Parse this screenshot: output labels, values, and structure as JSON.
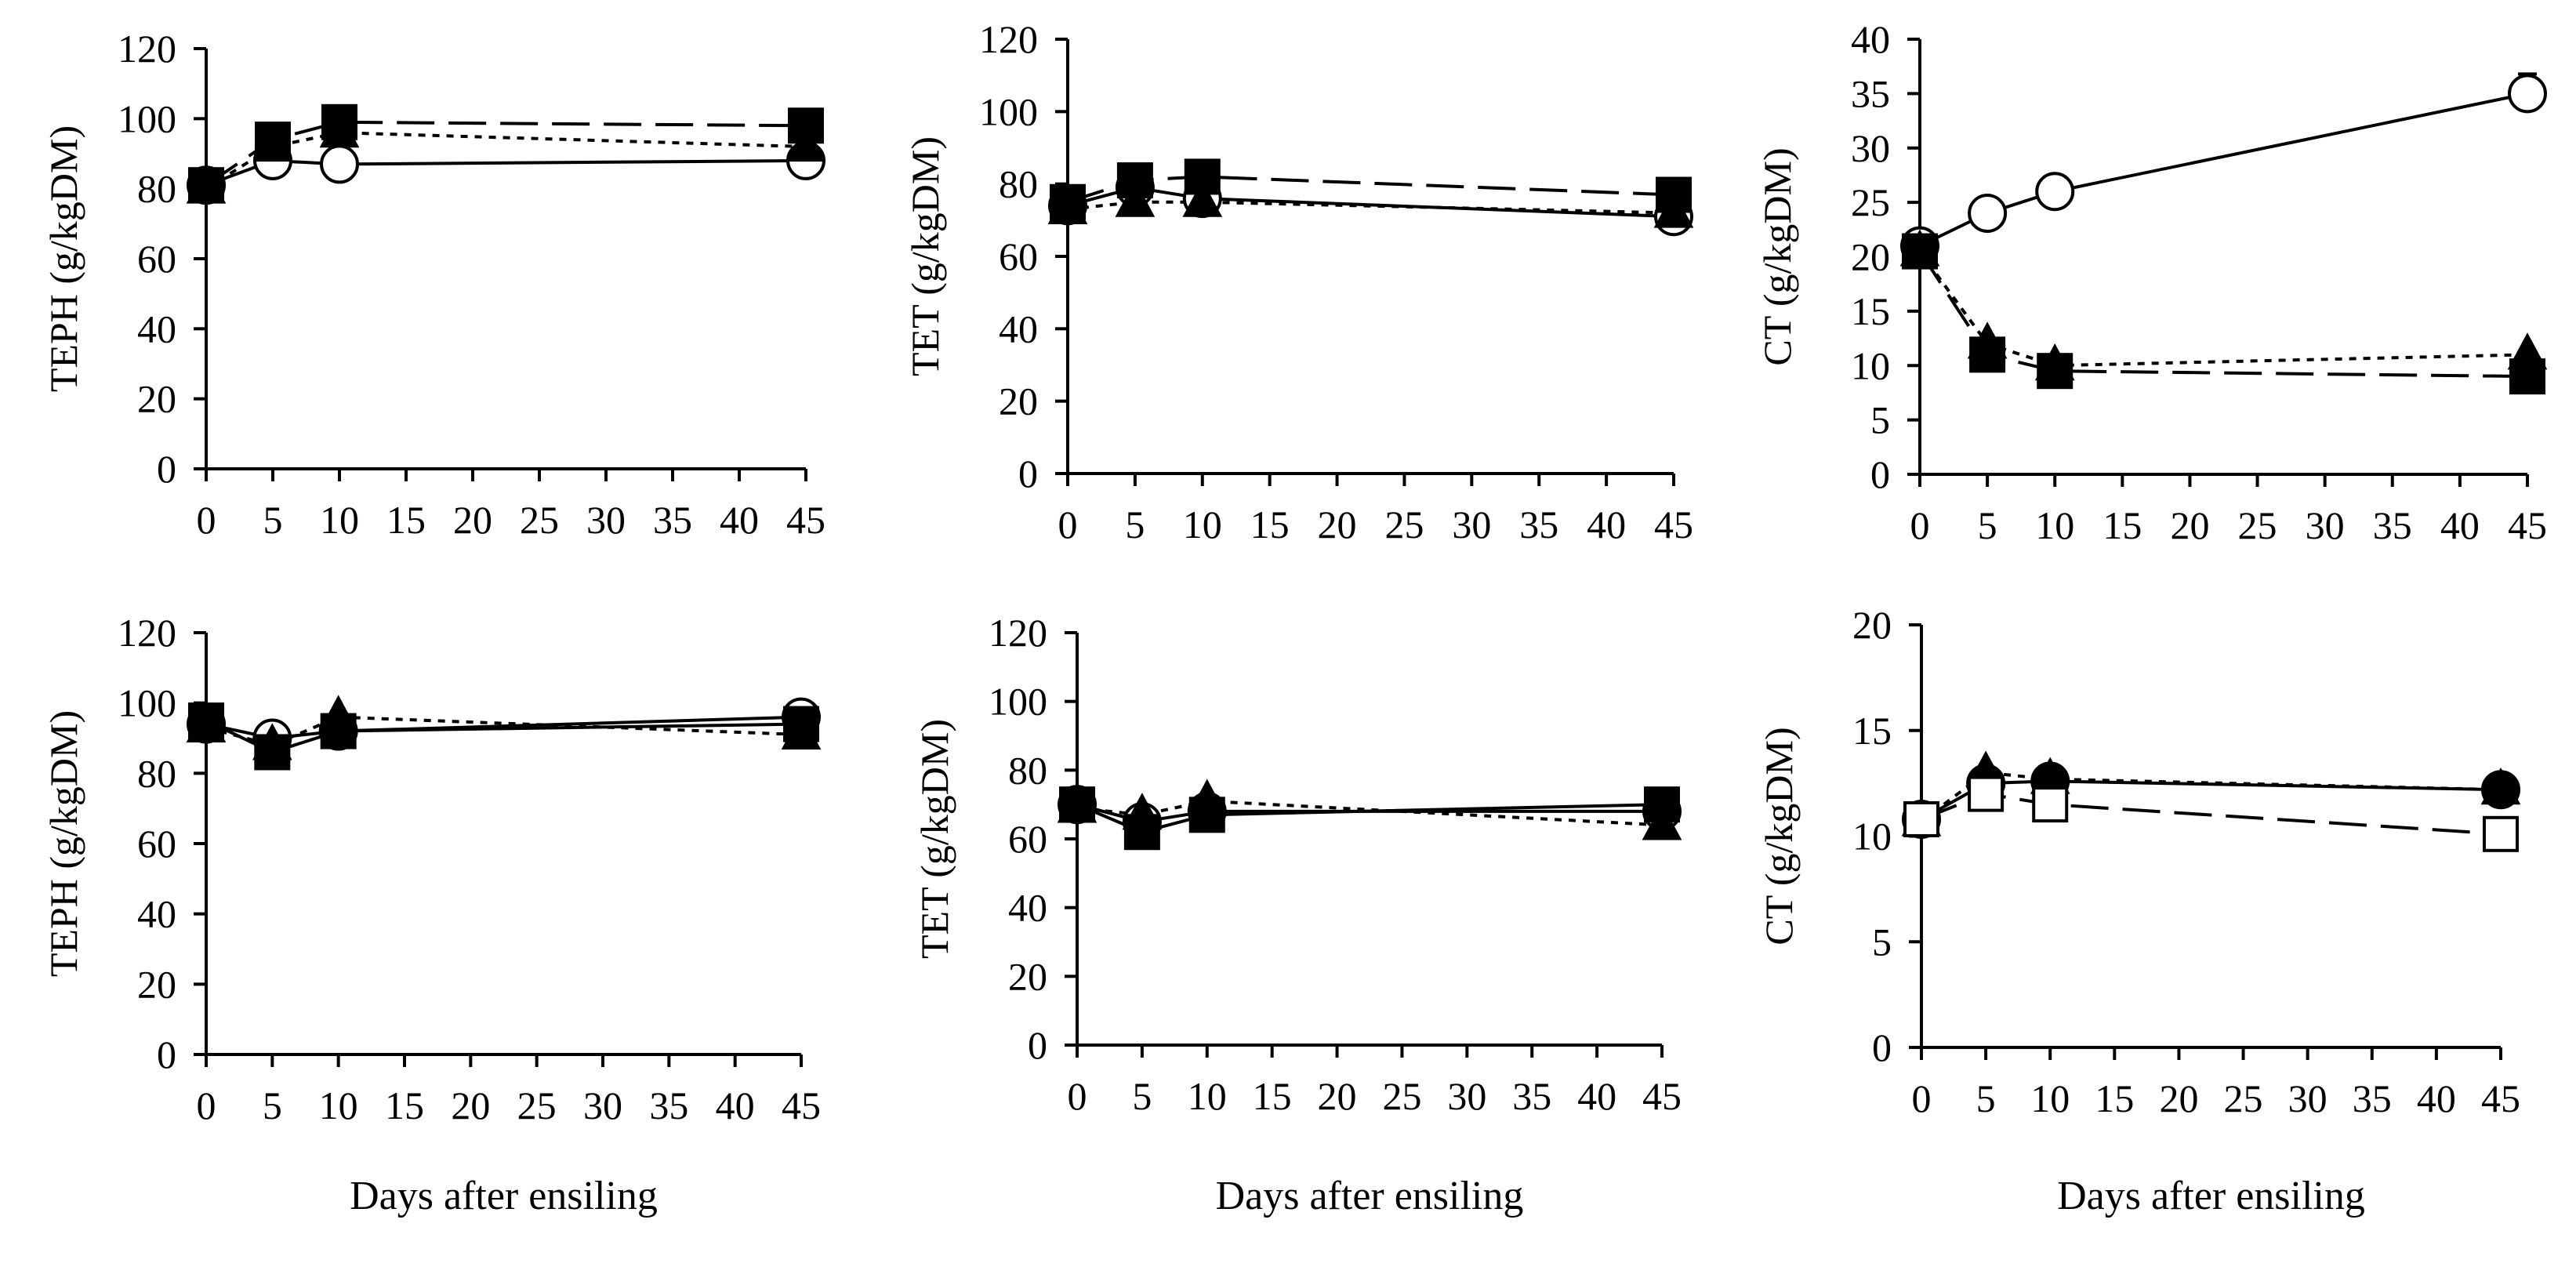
{
  "chart_data": [
    {
      "type": "line",
      "ylabel": "TEPH (g/kgDM)",
      "xlabel": "",
      "ylim": [
        0,
        120
      ],
      "yticks": [
        0,
        20,
        40,
        60,
        80,
        100,
        120
      ],
      "xlim": [
        0,
        45
      ],
      "xticks": [
        0,
        5,
        10,
        15,
        20,
        25,
        30,
        35,
        40,
        45
      ],
      "series": [
        {
          "name": "open-circle",
          "marker": "circle",
          "fill": "#ffffff",
          "dash": "solid",
          "x": [
            0,
            5,
            10,
            45
          ],
          "values": [
            81,
            88,
            87,
            88
          ]
        },
        {
          "name": "filled-triangle",
          "marker": "triangle",
          "fill": "#000000",
          "dash": "dotted",
          "x": [
            0,
            5,
            10,
            45
          ],
          "values": [
            80,
            92,
            96,
            92
          ]
        },
        {
          "name": "filled-square",
          "marker": "square",
          "fill": "#000000",
          "dash": "dashed",
          "x": [
            0,
            5,
            10,
            45
          ],
          "values": [
            81,
            94,
            99,
            98
          ]
        }
      ]
    },
    {
      "type": "line",
      "ylabel": "TET (g/kgDM)",
      "xlabel": "",
      "ylim": [
        0,
        120
      ],
      "yticks": [
        0,
        20,
        40,
        60,
        80,
        100,
        120
      ],
      "xlim": [
        0,
        45
      ],
      "xticks": [
        0,
        5,
        10,
        15,
        20,
        25,
        30,
        35,
        40,
        45
      ],
      "series": [
        {
          "name": "open-circle",
          "marker": "circle",
          "fill": "#ffffff",
          "dash": "solid",
          "x": [
            0,
            5,
            10,
            45
          ],
          "values": [
            74,
            79,
            76,
            71
          ]
        },
        {
          "name": "filled-triangle",
          "marker": "triangle",
          "fill": "#000000",
          "dash": "dotted",
          "x": [
            0,
            5,
            10,
            45
          ],
          "values": [
            73,
            75,
            75,
            72
          ]
        },
        {
          "name": "filled-square",
          "marker": "square",
          "fill": "#000000",
          "dash": "dashed",
          "x": [
            0,
            5,
            10,
            45
          ],
          "values": [
            75,
            81,
            82,
            77
          ]
        }
      ]
    },
    {
      "type": "line",
      "ylabel": "CT (g/kgDM)",
      "xlabel": "",
      "ylim": [
        0,
        40
      ],
      "yticks": [
        0,
        5,
        10,
        15,
        20,
        25,
        30,
        35,
        40
      ],
      "xlim": [
        0,
        45
      ],
      "xticks": [
        0,
        5,
        10,
        15,
        20,
        25,
        30,
        35,
        40,
        45
      ],
      "series": [
        {
          "name": "open-circle",
          "marker": "circle",
          "fill": "#ffffff",
          "dash": "solid",
          "x": [
            0,
            5,
            10,
            45
          ],
          "values": [
            21,
            24,
            26,
            35
          ],
          "errors": [
            0,
            0,
            0,
            1.8
          ]
        },
        {
          "name": "filled-triangle",
          "marker": "triangle",
          "fill": "#000000",
          "dash": "dotted",
          "x": [
            0,
            5,
            10,
            45
          ],
          "values": [
            20.5,
            12,
            10,
            11
          ]
        },
        {
          "name": "filled-square",
          "marker": "square",
          "fill": "#000000",
          "dash": "dashed",
          "x": [
            0,
            5,
            10,
            45
          ],
          "values": [
            20.5,
            11,
            9.5,
            9
          ]
        }
      ]
    },
    {
      "type": "line",
      "ylabel": "TEPH (g/kgDM)",
      "xlabel": "Days after ensiling",
      "ylim": [
        0,
        120
      ],
      "yticks": [
        0,
        20,
        40,
        60,
        80,
        100,
        120
      ],
      "xlim": [
        0,
        45
      ],
      "xticks": [
        0,
        5,
        10,
        15,
        20,
        25,
        30,
        35,
        40,
        45
      ],
      "series": [
        {
          "name": "open-circle",
          "marker": "circle",
          "fill": "#ffffff",
          "dash": "solid",
          "x": [
            0,
            5,
            10,
            45
          ],
          "values": [
            94,
            90,
            92,
            96
          ]
        },
        {
          "name": "filled-triangle",
          "marker": "triangle",
          "fill": "#000000",
          "dash": "dotted",
          "x": [
            0,
            5,
            10,
            45
          ],
          "values": [
            93,
            88,
            96,
            91
          ]
        },
        {
          "name": "filled-square",
          "marker": "square",
          "fill": "#000000",
          "dash": "solid",
          "x": [
            0,
            5,
            10,
            45
          ],
          "values": [
            95,
            86,
            92,
            94
          ]
        }
      ]
    },
    {
      "type": "line",
      "ylabel": "TET (g/kgDM)",
      "xlabel": "Days after ensiling",
      "ylim": [
        0,
        120
      ],
      "yticks": [
        0,
        20,
        40,
        60,
        80,
        100,
        120
      ],
      "xlim": [
        0,
        45
      ],
      "xticks": [
        0,
        5,
        10,
        15,
        20,
        25,
        30,
        35,
        40,
        45
      ],
      "series": [
        {
          "name": "open-circle",
          "marker": "circle",
          "fill": "#ffffff",
          "dash": "solid",
          "x": [
            0,
            5,
            10,
            45
          ],
          "values": [
            70,
            65,
            68,
            68
          ]
        },
        {
          "name": "filled-triangle",
          "marker": "triangle",
          "fill": "#000000",
          "dash": "dotted",
          "x": [
            0,
            5,
            10,
            45
          ],
          "values": [
            69,
            67,
            71,
            64
          ]
        },
        {
          "name": "filled-square",
          "marker": "square",
          "fill": "#000000",
          "dash": "solid",
          "x": [
            0,
            5,
            10,
            45
          ],
          "values": [
            70,
            62,
            67,
            70
          ]
        }
      ]
    },
    {
      "type": "line",
      "ylabel": "CT (g/kgDM)",
      "xlabel": "Days after ensiling",
      "ylim": [
        0,
        20
      ],
      "yticks": [
        0,
        5,
        10,
        15,
        20
      ],
      "xlim": [
        0,
        45
      ],
      "xticks": [
        0,
        5,
        10,
        15,
        20,
        25,
        30,
        35,
        40,
        45
      ],
      "series": [
        {
          "name": "filled-circle",
          "marker": "circle",
          "fill": "#000000",
          "dash": "solid",
          "x": [
            0,
            5,
            10,
            45
          ],
          "values": [
            10.8,
            12.5,
            12.6,
            12.2
          ]
        },
        {
          "name": "filled-triangle",
          "marker": "triangle",
          "fill": "#000000",
          "dash": "dotted",
          "x": [
            0,
            5,
            10,
            45
          ],
          "values": [
            10.7,
            13,
            12.7,
            12.2
          ]
        },
        {
          "name": "open-square",
          "marker": "square",
          "fill": "#ffffff",
          "dash": "dashed",
          "x": [
            0,
            5,
            10,
            45
          ],
          "values": [
            10.8,
            12,
            11.5,
            10.1
          ],
          "errors": [
            0,
            0,
            0.5,
            0
          ]
        }
      ]
    }
  ]
}
